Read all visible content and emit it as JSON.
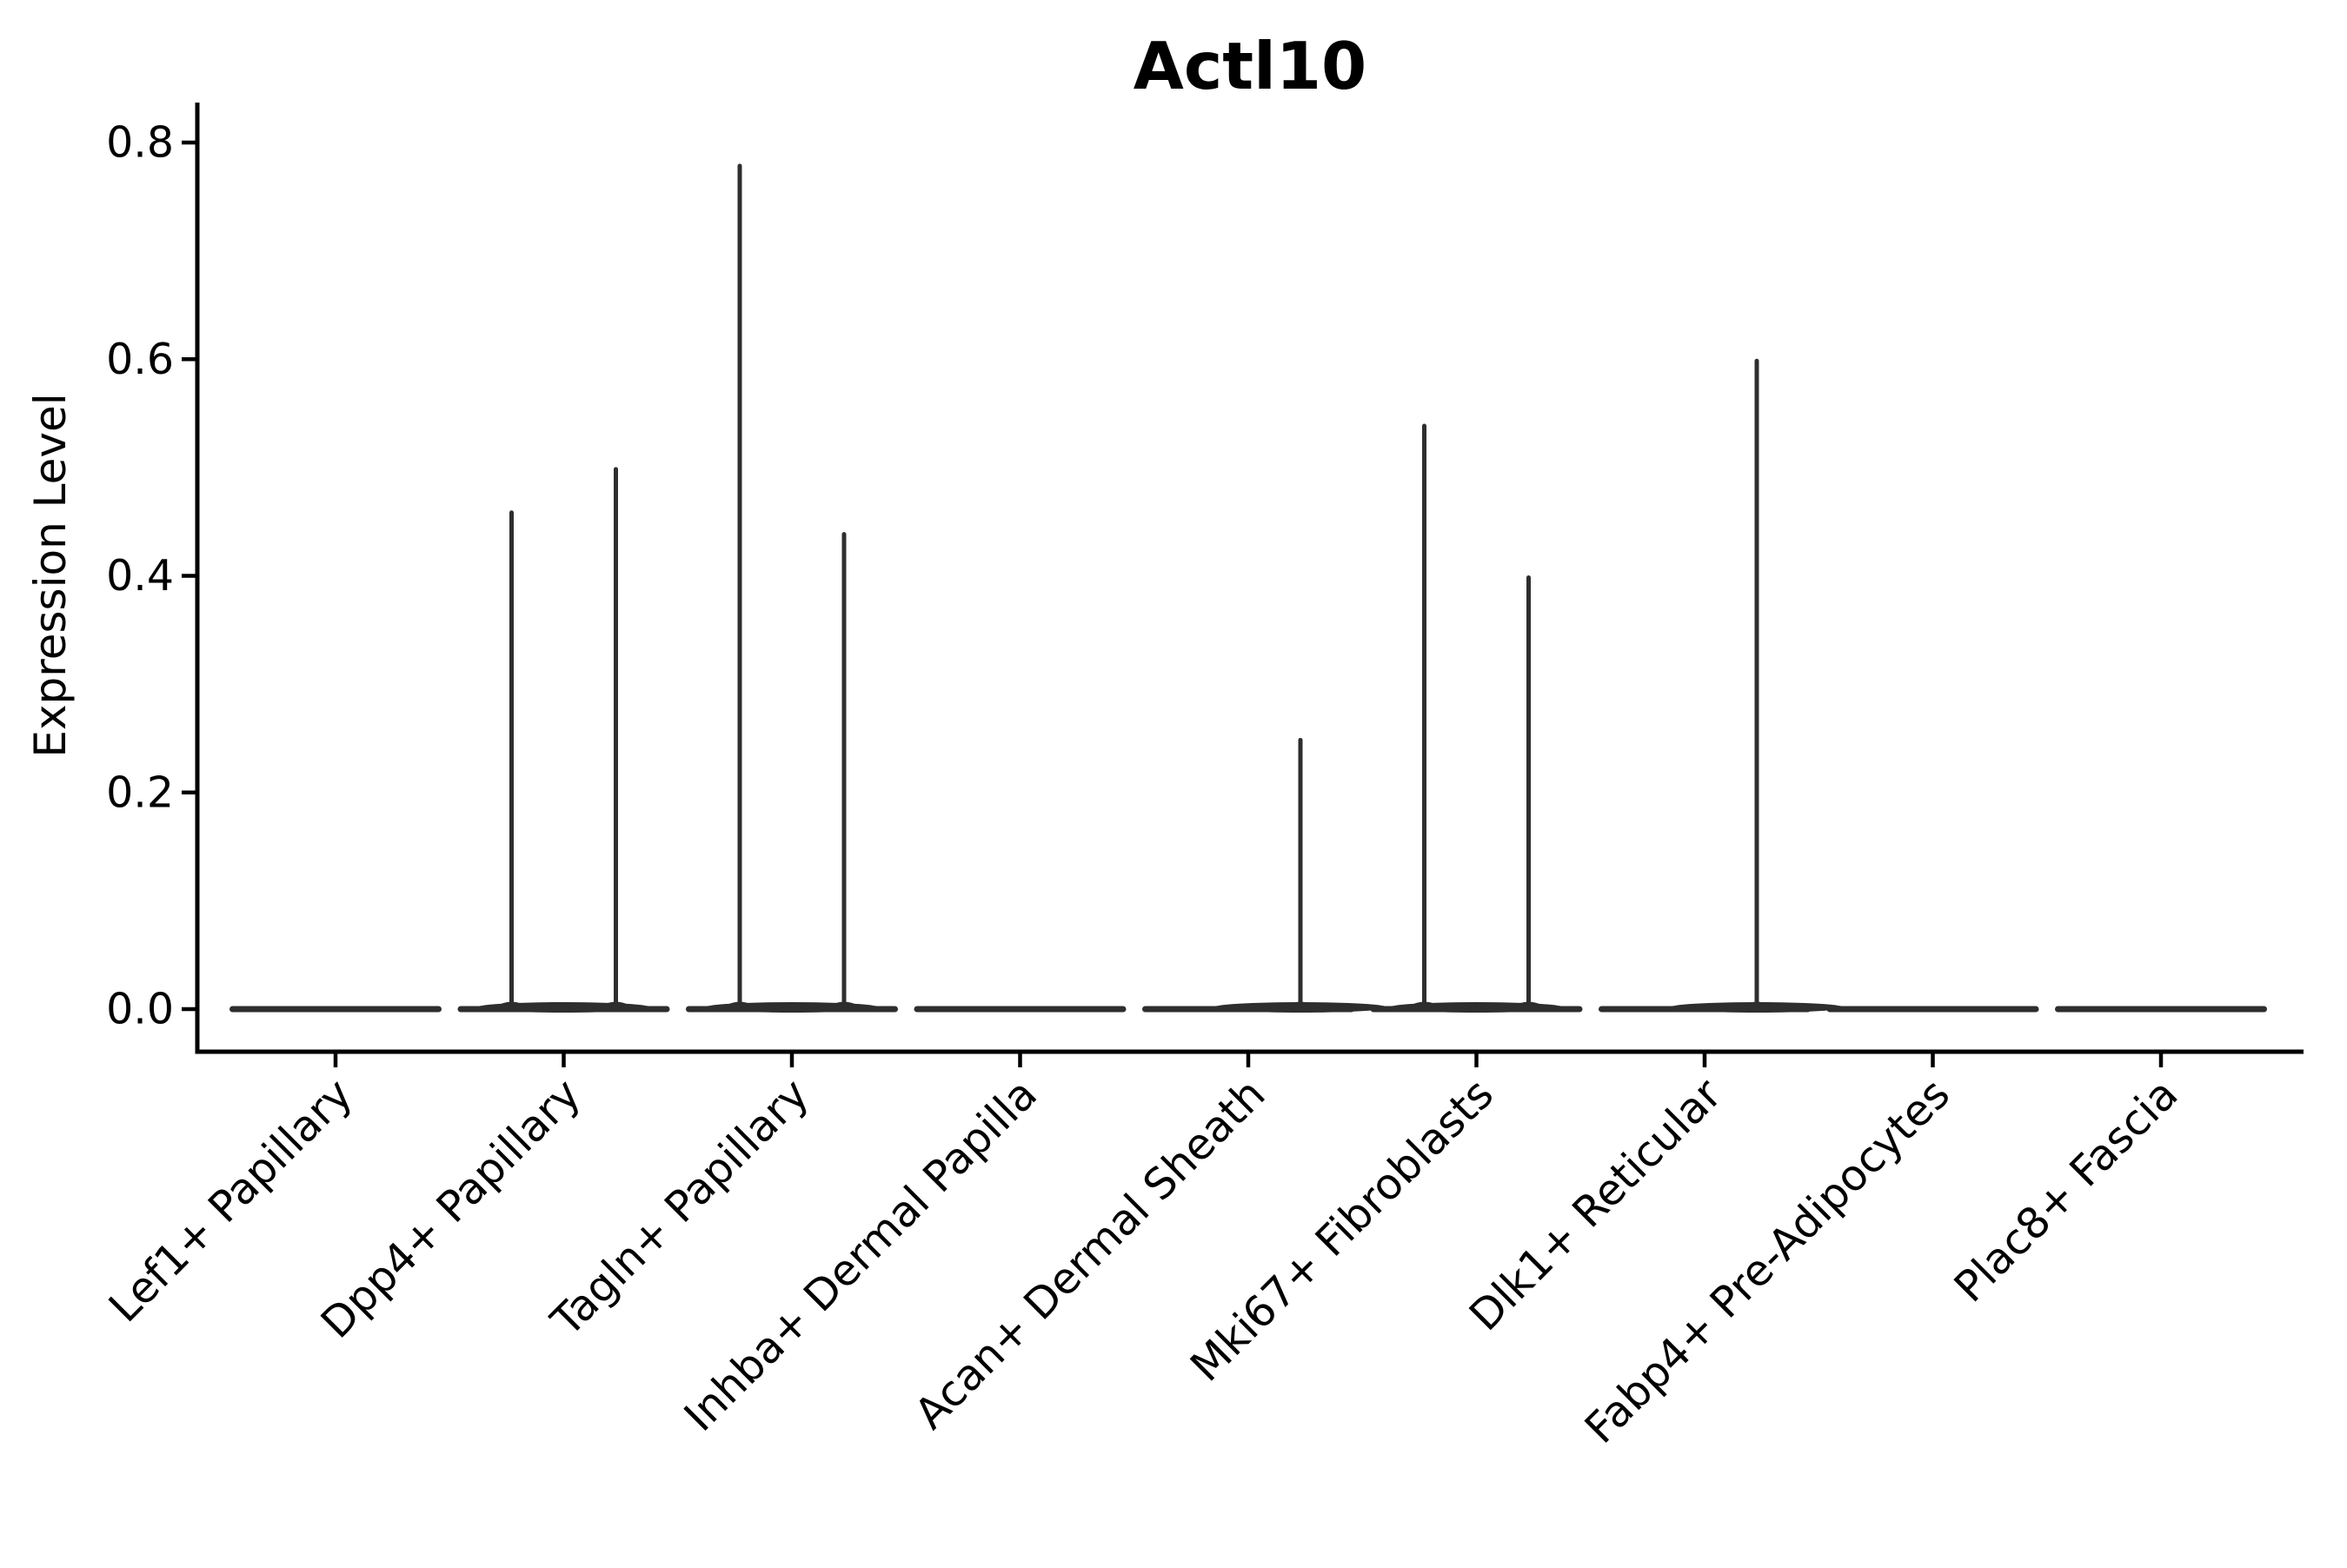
{
  "title": "Actl10",
  "axes": {
    "ylabel": "Expression Level",
    "xlabel": "",
    "ytick_labels": [
      "0.0",
      "0.2",
      "0.4",
      "0.6",
      "0.8"
    ]
  },
  "colors": {
    "background": "#ffffff",
    "axis_ink": "#000000",
    "violin_ink": "#2e2e2e"
  },
  "chart_data": {
    "type": "violin",
    "title": "Actl10",
    "xlabel": "",
    "ylabel": "Expression Level",
    "ylim": [
      0,
      0.84
    ],
    "yticks": [
      0,
      0.2,
      0.4,
      0.6,
      0.8
    ],
    "grid": false,
    "legend_position": "none",
    "categories": [
      "Lef1+ Papillary",
      "Dpp4+ Papillary",
      "Tagln+ Papillary",
      "Inhba+ Dermal Papilla",
      "Acan+ Dermal Sheath",
      "Mki67+ Fibroblasts",
      "Dlk1+ Reticular",
      "Fabp4+ Pre-Adipocytes",
      "Plac8+ Fascia"
    ],
    "description": "Violin plot of Actl10 expression per cluster; every violin is collapsed flat at expression 0, with thin density spikes where rare cells express the gene.",
    "violins": [
      {
        "category": "Lef1+ Papillary",
        "baseline_value": 0.0,
        "spikes": []
      },
      {
        "category": "Dpp4+ Papillary",
        "baseline_value": 0.0,
        "spikes": [
          {
            "position": "left",
            "max": 0.46
          },
          {
            "position": "right",
            "max": 0.5
          }
        ]
      },
      {
        "category": "Tagln+ Papillary",
        "baseline_value": 0.0,
        "spikes": [
          {
            "position": "left",
            "max": 0.78
          },
          {
            "position": "right",
            "max": 0.44
          }
        ]
      },
      {
        "category": "Inhba+ Dermal Papilla",
        "baseline_value": 0.0,
        "spikes": []
      },
      {
        "category": "Acan+ Dermal Sheath",
        "baseline_value": 0.0,
        "spikes": [
          {
            "position": "right",
            "max": 0.25
          }
        ]
      },
      {
        "category": "Mki67+ Fibroblasts",
        "baseline_value": 0.0,
        "spikes": [
          {
            "position": "left",
            "max": 0.54
          },
          {
            "position": "right",
            "max": 0.4
          }
        ]
      },
      {
        "category": "Dlk1+ Reticular",
        "baseline_value": 0.0,
        "spikes": [
          {
            "position": "right",
            "max": 0.6
          }
        ]
      },
      {
        "category": "Fabp4+ Pre-Adipocytes",
        "baseline_value": 0.0,
        "spikes": []
      },
      {
        "category": "Plac8+ Fascia",
        "baseline_value": 0.0,
        "spikes": []
      }
    ]
  }
}
